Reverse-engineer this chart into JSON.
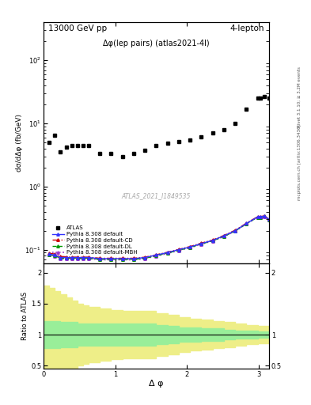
{
  "title_left": "13000 GeV pp",
  "title_right": "4-lepton",
  "plot_title": "Δφ(lep pairs) (atlas2021-4l)",
  "ylabel_main": "dσ/dΔφ (fb/GeV)",
  "xlabel": "Δ φ",
  "ylabel_ratio": "Ratio to ATLAS",
  "watermark": "ATLAS_2021_I1849535",
  "right_label_top": "Rivet 3.1.10; ≥ 3.2M events",
  "right_label_bot": "mcplots.cern.ch [arXiv:1306.3436]",
  "atlas_x": [
    0.0785,
    0.157,
    0.2356,
    0.3141,
    0.3927,
    0.4712,
    0.5497,
    0.6283,
    0.7854,
    0.9425,
    1.0996,
    1.2566,
    1.4137,
    1.5708,
    1.7279,
    1.885,
    2.042,
    2.1991,
    2.3562,
    2.5133,
    2.6704,
    2.8274,
    2.9845,
    3.0159,
    3.0788,
    3.1416
  ],
  "atlas_y": [
    5.0,
    6.5,
    3.5,
    4.2,
    4.5,
    4.5,
    4.5,
    4.5,
    3.3,
    3.3,
    3.0,
    3.3,
    3.8,
    4.5,
    4.8,
    5.2,
    5.5,
    6.2,
    7.0,
    8.0,
    10.0,
    17.0,
    25.0,
    25.0,
    27.0,
    25.0
  ],
  "pythia_x": [
    0.0785,
    0.157,
    0.2356,
    0.3141,
    0.3927,
    0.4712,
    0.5497,
    0.6283,
    0.7854,
    0.9425,
    1.0996,
    1.2566,
    1.4137,
    1.5708,
    1.7279,
    1.885,
    2.042,
    2.1991,
    2.3562,
    2.5133,
    2.6704,
    2.8274,
    2.9845,
    3.0159,
    3.0788,
    3.1416
  ],
  "pythia_default_y": [
    0.085,
    0.082,
    0.075,
    0.075,
    0.075,
    0.075,
    0.075,
    0.075,
    0.072,
    0.072,
    0.072,
    0.072,
    0.075,
    0.082,
    0.09,
    0.1,
    0.11,
    0.125,
    0.14,
    0.165,
    0.2,
    0.26,
    0.33,
    0.33,
    0.34,
    0.3
  ],
  "pythia_cd_y": [
    0.088,
    0.085,
    0.078,
    0.077,
    0.076,
    0.076,
    0.076,
    0.076,
    0.073,
    0.073,
    0.073,
    0.073,
    0.076,
    0.083,
    0.091,
    0.101,
    0.112,
    0.127,
    0.142,
    0.168,
    0.203,
    0.263,
    0.333,
    0.333,
    0.343,
    0.303
  ],
  "pythia_dl_y": [
    0.083,
    0.08,
    0.073,
    0.073,
    0.073,
    0.073,
    0.073,
    0.073,
    0.07,
    0.07,
    0.07,
    0.07,
    0.073,
    0.08,
    0.088,
    0.098,
    0.108,
    0.123,
    0.138,
    0.162,
    0.197,
    0.257,
    0.327,
    0.327,
    0.337,
    0.297
  ],
  "pythia_mbt_y": [
    0.082,
    0.079,
    0.072,
    0.072,
    0.072,
    0.072,
    0.072,
    0.072,
    0.069,
    0.069,
    0.069,
    0.069,
    0.072,
    0.079,
    0.087,
    0.097,
    0.107,
    0.122,
    0.137,
    0.161,
    0.196,
    0.256,
    0.326,
    0.326,
    0.336,
    0.296
  ],
  "ratio_x": [
    0.0,
    0.0785,
    0.157,
    0.2356,
    0.3141,
    0.3927,
    0.4712,
    0.5497,
    0.6283,
    0.7854,
    0.9425,
    1.0996,
    1.2566,
    1.4137,
    1.5708,
    1.7279,
    1.885,
    2.042,
    2.1991,
    2.3562,
    2.5133,
    2.6704,
    2.8274,
    2.9845,
    3.0159,
    3.0788,
    3.1416
  ],
  "green_upper": [
    1.22,
    1.22,
    1.22,
    1.2,
    1.2,
    1.2,
    1.18,
    1.18,
    1.18,
    1.18,
    1.18,
    1.18,
    1.18,
    1.18,
    1.16,
    1.14,
    1.12,
    1.12,
    1.1,
    1.1,
    1.08,
    1.06,
    1.06,
    1.05,
    1.05,
    1.05,
    1.05
  ],
  "green_lower": [
    0.78,
    0.78,
    0.78,
    0.8,
    0.8,
    0.8,
    0.82,
    0.82,
    0.82,
    0.82,
    0.82,
    0.82,
    0.82,
    0.82,
    0.84,
    0.86,
    0.88,
    0.88,
    0.9,
    0.9,
    0.92,
    0.94,
    0.94,
    0.95,
    0.95,
    0.95,
    0.95
  ],
  "yellow_upper": [
    1.8,
    1.75,
    1.7,
    1.65,
    1.6,
    1.55,
    1.5,
    1.48,
    1.45,
    1.42,
    1.4,
    1.38,
    1.38,
    1.38,
    1.35,
    1.32,
    1.28,
    1.26,
    1.24,
    1.22,
    1.2,
    1.18,
    1.16,
    1.14,
    1.14,
    1.14,
    1.14
  ],
  "yellow_lower": [
    0.3,
    0.35,
    0.38,
    0.4,
    0.42,
    0.45,
    0.5,
    0.52,
    0.55,
    0.58,
    0.6,
    0.62,
    0.62,
    0.62,
    0.65,
    0.68,
    0.72,
    0.74,
    0.76,
    0.78,
    0.8,
    0.82,
    0.84,
    0.86,
    0.86,
    0.86,
    0.86
  ],
  "colors": {
    "atlas": "#000000",
    "pythia_default": "#3333ff",
    "pythia_cd": "#cc0000",
    "pythia_dl": "#009900",
    "pythia_mbt": "#9933cc",
    "green_band": "#99ee99",
    "yellow_band": "#eeee88"
  },
  "ylim_main": [
    0.06,
    400
  ],
  "ylim_ratio": [
    0.45,
    2.15
  ],
  "xlim": [
    0.0,
    3.1416
  ]
}
